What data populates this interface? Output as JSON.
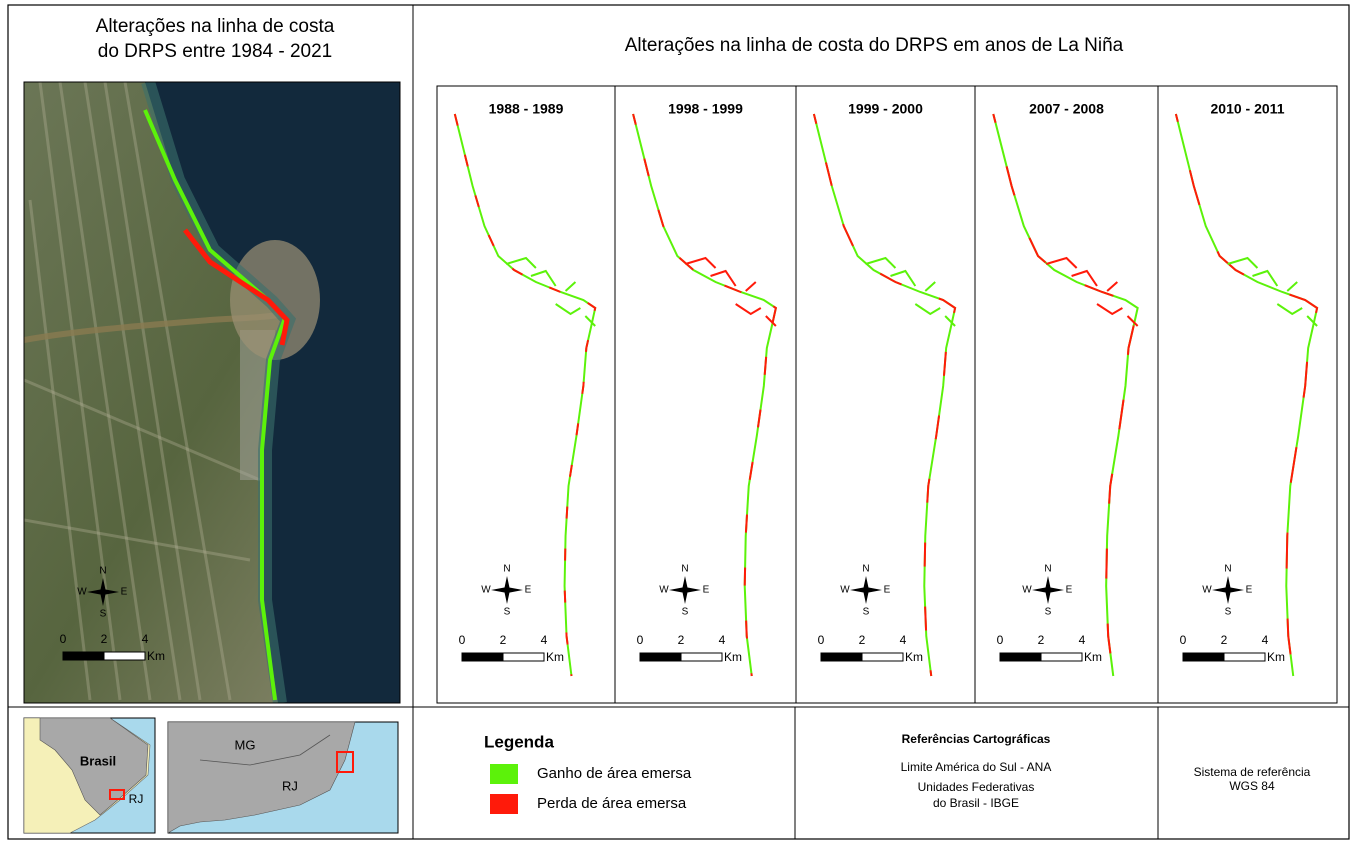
{
  "left_panel": {
    "title": [
      "Alterações na linha de costa",
      "do DRPS entre 1984 - 2021"
    ]
  },
  "right_panel": {
    "title": "Alterações na linha de costa do DRPS em anos de La Niña",
    "panels": [
      "1988 - 1989",
      "1998 - 1999",
      "1999 - 2000",
      "2007 - 2008",
      "2010 - 2011"
    ]
  },
  "compass": {
    "n": "N",
    "w": "W",
    "e": "E",
    "s": "S"
  },
  "scale_bar": {
    "ticks": [
      "0",
      "2",
      "4"
    ],
    "unit": "Km"
  },
  "insets": {
    "country": "Brasil",
    "state": "RJ",
    "region_labels": [
      "MG",
      "RJ"
    ]
  },
  "legend": {
    "title": "Legenda",
    "items": [
      {
        "label": "Ganho de área emersa",
        "color": "#5cf20a"
      },
      {
        "label": "Perda de área emersa",
        "color": "#ff1a0a"
      }
    ]
  },
  "references": {
    "title": "Referências Cartográficas",
    "lines": [
      "Limite América do Sul - ANA",
      "Unidades Federativas",
      "do Brasil - IBGE"
    ]
  },
  "crs": {
    "lines": [
      "Sistema de referência",
      "WGS 84"
    ]
  }
}
